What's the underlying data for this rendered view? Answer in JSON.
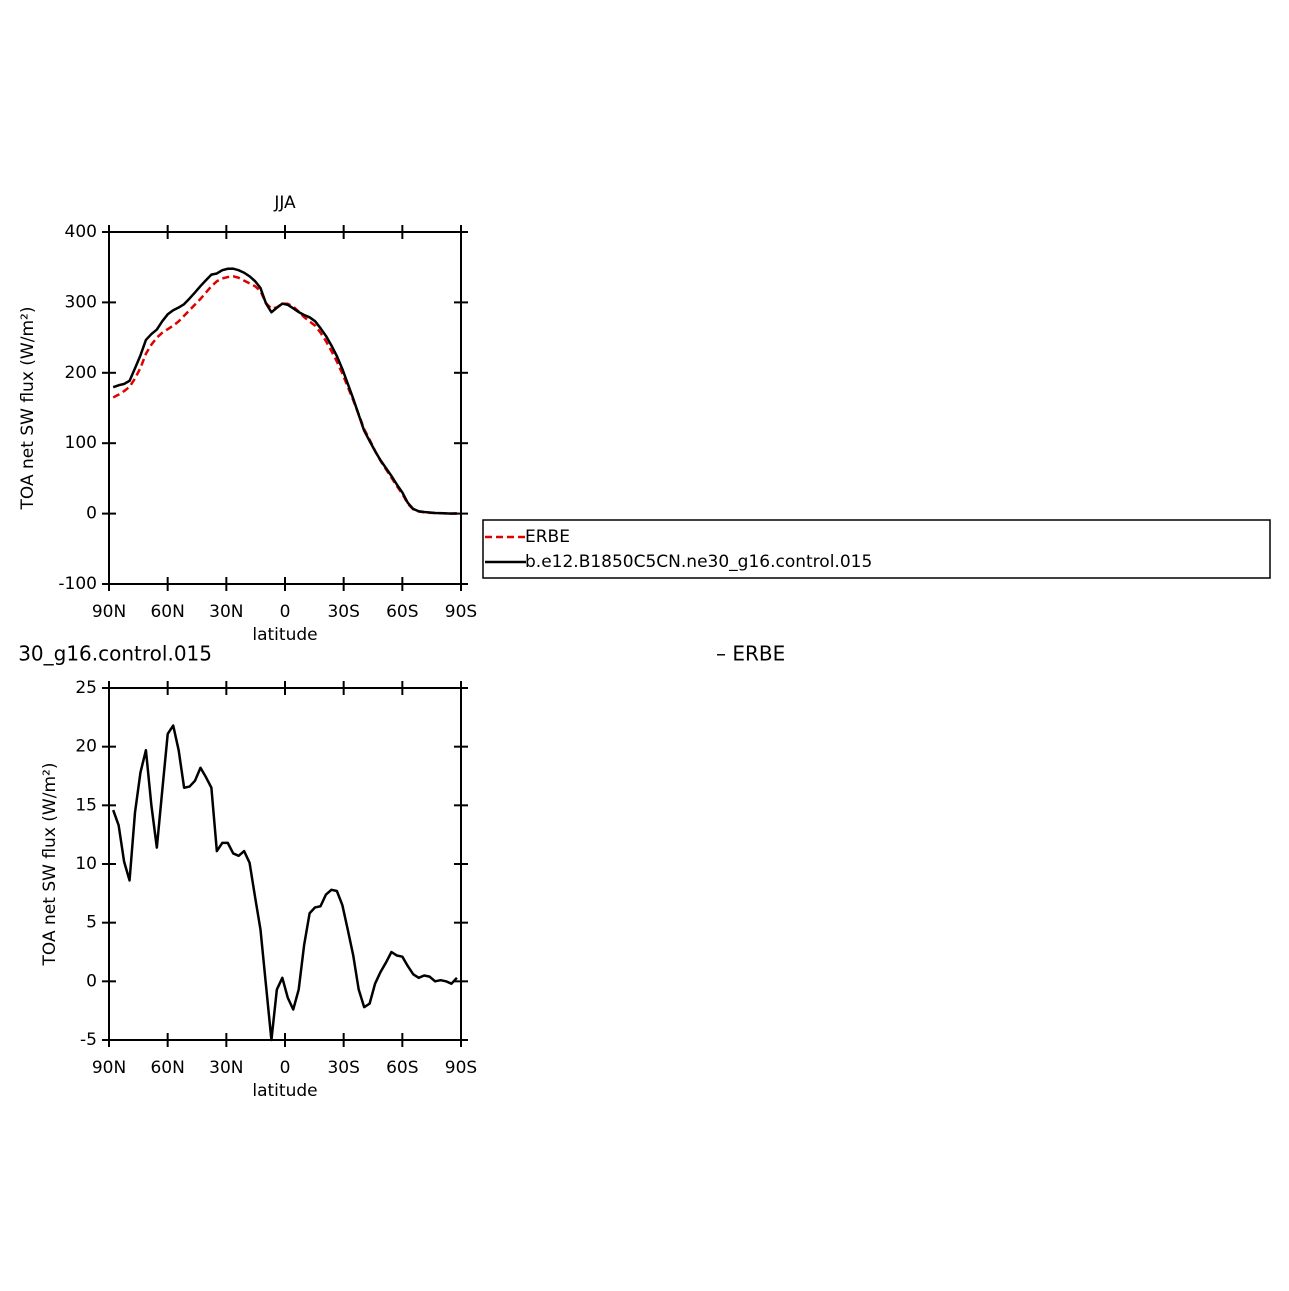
{
  "chart_data": [
    {
      "type": "line",
      "title": "JJA",
      "xlabel": "latitude",
      "ylabel": "TOA net SW flux (W/m²)",
      "x": [
        87.86,
        85.07,
        82.28,
        79.49,
        76.7,
        73.91,
        71.12,
        68.33,
        65.54,
        62.75,
        59.96,
        57.17,
        54.38,
        51.59,
        48.8,
        46.01,
        43.22,
        40.43,
        37.64,
        34.85,
        32.06,
        29.27,
        26.48,
        23.69,
        20.9,
        18.11,
        15.32,
        12.53,
        9.74,
        6.95,
        4.16,
        1.37,
        -1.42,
        -4.21,
        -7,
        -9.79,
        -12.58,
        -15.37,
        -18.16,
        -20.95,
        -23.74,
        -26.53,
        -29.32,
        -32.11,
        -34.9,
        -37.69,
        -40.48,
        -43.27,
        -46.06,
        -48.85,
        -51.64,
        -54.43,
        -57.22,
        -60.01,
        -62.8,
        -65.59,
        -68.38,
        -71.17,
        -73.96,
        -76.75,
        -79.54,
        -82.33,
        -85.12,
        -87.91
      ],
      "series": [
        {
          "name": "ERBE",
          "color": "#e00000",
          "dash": true,
          "values": [
            165,
            169,
            174,
            180,
            192,
            207,
            227,
            240,
            250,
            257,
            262,
            267,
            273,
            281,
            289,
            297,
            305,
            314,
            323,
            330,
            334,
            336,
            337,
            335,
            331,
            327,
            323,
            316,
            299,
            291,
            293,
            298,
            298,
            294,
            287,
            279,
            273,
            267,
            257,
            245,
            231,
            216,
            199,
            180,
            161,
            141,
            120,
            105,
            89,
            75,
            63,
            51,
            39,
            28,
            14,
            6,
            3,
            1.8,
            1.2,
            0.8,
            0.5,
            0.3,
            0.1,
            0
          ]
        },
        {
          "name": "b.e12.B1850C5CN.ne30_g16.control.015",
          "color": "#000000",
          "dash": false,
          "values": [
            179.6,
            182.3,
            184.2,
            188.6,
            206.4,
            224.8,
            246.7,
            255,
            261.4,
            273.3,
            283.1,
            288.8,
            292.7,
            297.5,
            305.6,
            314.1,
            323.2,
            331.4,
            339.5,
            341.1,
            345.8,
            347.8,
            347.9,
            345.7,
            342.1,
            337.1,
            330.2,
            320.4,
            298.7,
            286,
            292.3,
            298.3,
            296.6,
            291.6,
            286.3,
            282.1,
            278.8,
            273.3,
            263.4,
            252.4,
            238.8,
            223.7,
            205.5,
            184.4,
            163.2,
            140.3,
            117.8,
            103.1,
            88.8,
            75.8,
            64.6,
            53.5,
            41.2,
            30.1,
            15.3,
            6.6,
            3.3,
            2.3,
            1.6,
            0.8,
            0.6,
            0.3,
            0,
            0.3
          ]
        }
      ],
      "xlim": [
        90,
        -90
      ],
      "xticks": [
        {
          "value": 90,
          "label": "90N"
        },
        {
          "value": 60,
          "label": "60N"
        },
        {
          "value": 30,
          "label": "30N"
        },
        0,
        {
          "value": -30,
          "label": "30S"
        },
        {
          "value": -60,
          "label": "60S"
        },
        {
          "value": -90,
          "label": "90S"
        }
      ],
      "ylim": [
        -100,
        400
      ],
      "yticks": [
        -100,
        0,
        100,
        200,
        300,
        400
      ],
      "legend": "right"
    },
    {
      "type": "line",
      "title": "30_g16.control.015",
      "title_right": "– ERBE",
      "xlabel": "latitude",
      "ylabel": "TOA net SW flux (W/m²)",
      "x": [
        87.86,
        85.07,
        82.28,
        79.49,
        76.7,
        73.91,
        71.12,
        68.33,
        65.54,
        62.75,
        59.96,
        57.17,
        54.38,
        51.59,
        48.8,
        46.01,
        43.22,
        40.43,
        37.64,
        34.85,
        32.06,
        29.27,
        26.48,
        23.69,
        20.9,
        18.11,
        15.32,
        12.53,
        9.74,
        6.95,
        4.16,
        1.37,
        -1.42,
        -4.21,
        -7,
        -9.79,
        -12.58,
        -15.37,
        -18.16,
        -20.95,
        -23.74,
        -26.53,
        -29.32,
        -32.11,
        -34.9,
        -37.69,
        -40.48,
        -43.27,
        -46.06,
        -48.85,
        -51.64,
        -54.43,
        -57.22,
        -60.01,
        -62.8,
        -65.59,
        -68.38,
        -71.17,
        -73.96,
        -76.75,
        -79.54,
        -82.33,
        -85.12,
        -87.91
      ],
      "series": [
        {
          "color": "#000000",
          "dash": false,
          "values": [
            14.6,
            13.3,
            10.2,
            8.6,
            14.4,
            17.8,
            19.7,
            15,
            11.4,
            16.3,
            21.1,
            21.8,
            19.7,
            16.5,
            16.6,
            17.1,
            18.2,
            17.4,
            16.5,
            11.1,
            11.8,
            11.8,
            10.9,
            10.7,
            11.1,
            10.1,
            7.2,
            4.4,
            -0.3,
            -5,
            -0.7,
            0.3,
            -1.4,
            -2.4,
            -0.7,
            3.1,
            5.8,
            6.3,
            6.4,
            7.4,
            7.8,
            7.7,
            6.5,
            4.4,
            2.2,
            -0.7,
            -2.2,
            -1.9,
            -0.2,
            0.8,
            1.6,
            2.5,
            2.2,
            2.1,
            1.3,
            0.6,
            0.3,
            0.5,
            0.4,
            0,
            0.1,
            0,
            -0.2,
            0.3
          ]
        }
      ],
      "xlim": [
        90,
        -90
      ],
      "xticks": [
        {
          "value": 90,
          "label": "90N"
        },
        {
          "value": 60,
          "label": "60N"
        },
        {
          "value": 30,
          "label": "30N"
        },
        0,
        {
          "value": -30,
          "label": "30S"
        },
        {
          "value": -60,
          "label": "60S"
        },
        {
          "value": -90,
          "label": "90S"
        }
      ],
      "ylim": [
        -5,
        25
      ],
      "yticks": [
        -5,
        0,
        5,
        10,
        15,
        20,
        25
      ]
    }
  ]
}
